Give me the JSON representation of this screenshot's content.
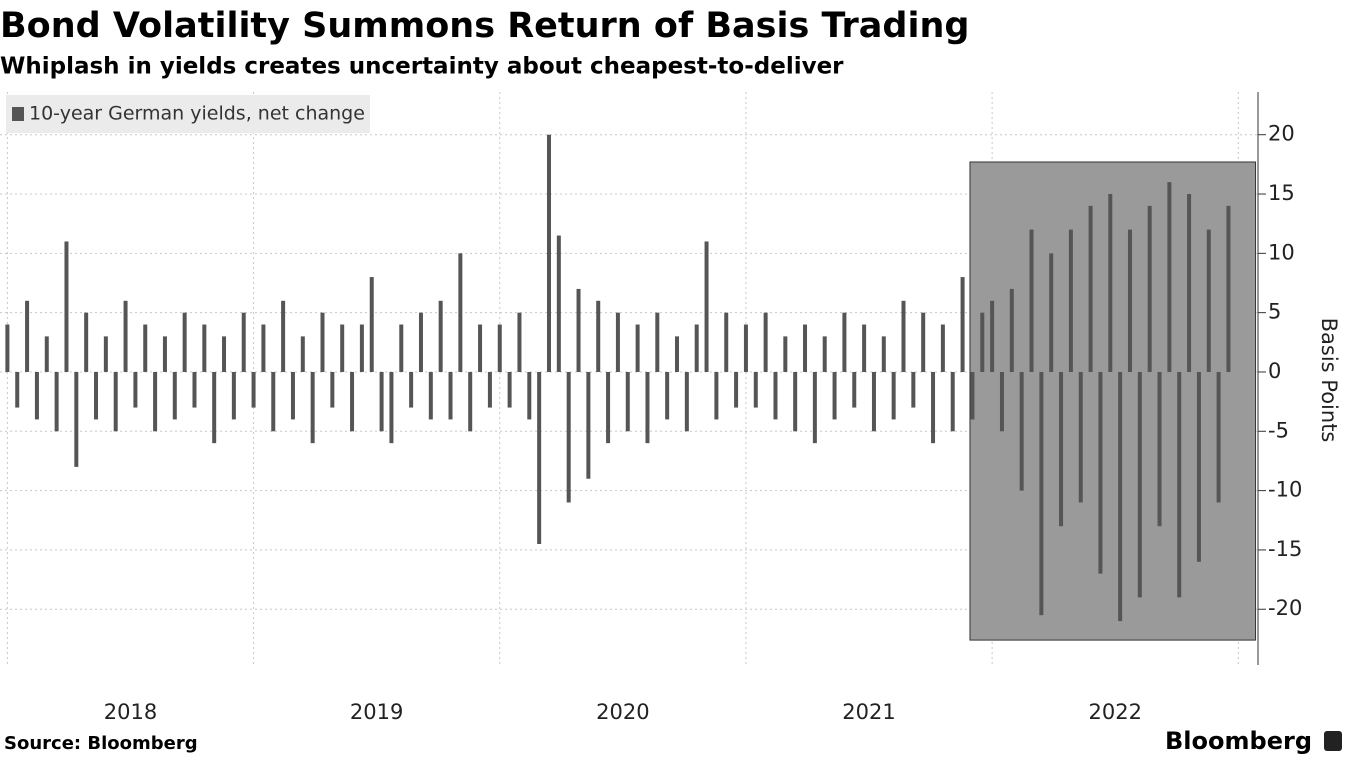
{
  "chart_data": {
    "type": "bar",
    "title": "Bond Volatility Summons Return of Basis Trading",
    "subtitle": "Whiplash in yields creates uncertainty about cheapest-to-deliver",
    "source": "Source: Bloomberg",
    "logo": "Bloomberg",
    "y_axis_label": "Basis Points",
    "legend_position": "top-left",
    "grid": true,
    "x": [
      2018.0,
      2018.04,
      2018.08,
      2018.12,
      2018.16,
      2018.2,
      2018.24,
      2018.28,
      2018.32,
      2018.36,
      2018.4,
      2018.44,
      2018.48,
      2018.52,
      2018.56,
      2018.6,
      2018.64,
      2018.68,
      2018.72,
      2018.76,
      2018.8,
      2018.84,
      2018.88,
      2018.92,
      2018.96,
      2019.0,
      2019.04,
      2019.08,
      2019.12,
      2019.16,
      2019.2,
      2019.24,
      2019.28,
      2019.32,
      2019.36,
      2019.4,
      2019.44,
      2019.48,
      2019.52,
      2019.56,
      2019.6,
      2019.64,
      2019.68,
      2019.72,
      2019.76,
      2019.8,
      2019.84,
      2019.88,
      2019.92,
      2019.96,
      2020.0,
      2020.04,
      2020.08,
      2020.12,
      2020.16,
      2020.2,
      2020.24,
      2020.28,
      2020.32,
      2020.36,
      2020.4,
      2020.44,
      2020.48,
      2020.52,
      2020.56,
      2020.6,
      2020.64,
      2020.68,
      2020.72,
      2020.76,
      2020.8,
      2020.84,
      2020.88,
      2020.92,
      2020.96,
      2021.0,
      2021.04,
      2021.08,
      2021.12,
      2021.16,
      2021.2,
      2021.24,
      2021.28,
      2021.32,
      2021.36,
      2021.4,
      2021.44,
      2021.48,
      2021.52,
      2021.56,
      2021.6,
      2021.64,
      2021.68,
      2021.72,
      2021.76,
      2021.8,
      2021.84,
      2021.88,
      2021.92,
      2021.96,
      2022.0,
      2022.04,
      2022.08,
      2022.12,
      2022.16,
      2022.2,
      2022.24,
      2022.28,
      2022.32,
      2022.36,
      2022.4,
      2022.44,
      2022.48,
      2022.52,
      2022.56,
      2022.6,
      2022.64,
      2022.68,
      2022.72,
      2022.76,
      2022.8,
      2022.84,
      2022.88,
      2022.92,
      2022.96
    ],
    "series": [
      {
        "name": "10-year German yields, net change",
        "color": "#555555",
        "values": [
          4,
          -3,
          6,
          -4,
          3,
          -5,
          11,
          -8,
          5,
          -4,
          3,
          -5,
          6,
          -3,
          4,
          -5,
          3,
          -4,
          5,
          -3,
          4,
          -6,
          3,
          -4,
          5,
          -3,
          4,
          -5,
          6,
          -4,
          3,
          -6,
          5,
          -3,
          4,
          -5,
          4,
          8,
          -5,
          -6,
          4,
          -3,
          5,
          -4,
          6,
          -4,
          10,
          -5,
          4,
          -3,
          4,
          -3,
          5,
          -4,
          -14.5,
          20,
          11.5,
          -11,
          7,
          -9,
          6,
          -6,
          5,
          -5,
          4,
          -6,
          5,
          -4,
          3,
          -5,
          4,
          11,
          -4,
          5,
          -3,
          4,
          -3,
          5,
          -4,
          3,
          -5,
          4,
          -6,
          3,
          -4,
          5,
          -3,
          4,
          -5,
          3,
          -4,
          6,
          -3,
          5,
          -6,
          4,
          -5,
          8,
          -4,
          5,
          6,
          -5,
          7,
          -10,
          12,
          -20.5,
          10,
          -13,
          12,
          -11,
          14,
          -17,
          15,
          -21,
          12,
          -19,
          14,
          -13,
          16,
          -19,
          15,
          -16,
          12,
          -11,
          14
        ]
      }
    ],
    "xlim": [
      2017.97,
      2023.08
    ],
    "xticks": [
      2018,
      2019,
      2020,
      2021,
      2022
    ],
    "ylim": [
      -24.7,
      23.6
    ],
    "yticks": [
      -20,
      -15,
      -10,
      -5,
      0,
      5,
      10,
      15,
      20
    ],
    "highlight": {
      "xlim": [
        2021.91,
        2023.07
      ],
      "ylim": [
        -22.6,
        17.7
      ],
      "color": "#9a9a9a"
    }
  }
}
